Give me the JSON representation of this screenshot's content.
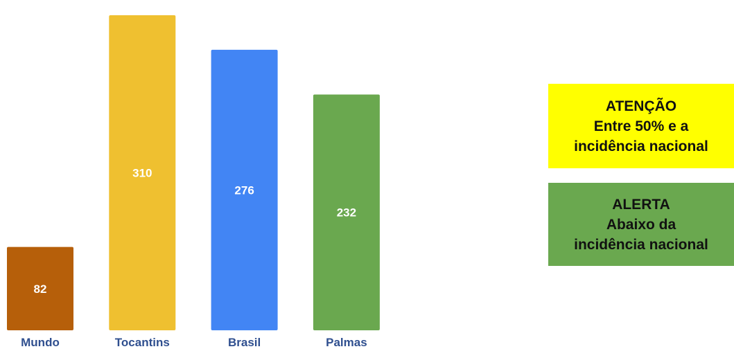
{
  "chart_data": {
    "type": "bar",
    "categories": [
      "Mundo",
      "Tocantins",
      "Brasil",
      "Palmas"
    ],
    "values": [
      82,
      310,
      276,
      232
    ],
    "colors": [
      "#b65f0a",
      "#efc030",
      "#4285f4",
      "#6aa84f"
    ],
    "label_color": "#2f4f8f",
    "title": "",
    "xlabel": "",
    "ylabel": "",
    "ylim": [
      0,
      325
    ],
    "grid": false,
    "data_labels": true
  },
  "legend": {
    "atencao": {
      "color": "#ffff00",
      "title": "ATENÇÃO",
      "line1": "Entre 50% e a",
      "line2": "incidência nacional"
    },
    "alerta": {
      "color": "#6aa84f",
      "title": "ALERTA",
      "line1": "Abaixo da",
      "line2": "incidência nacional"
    }
  }
}
